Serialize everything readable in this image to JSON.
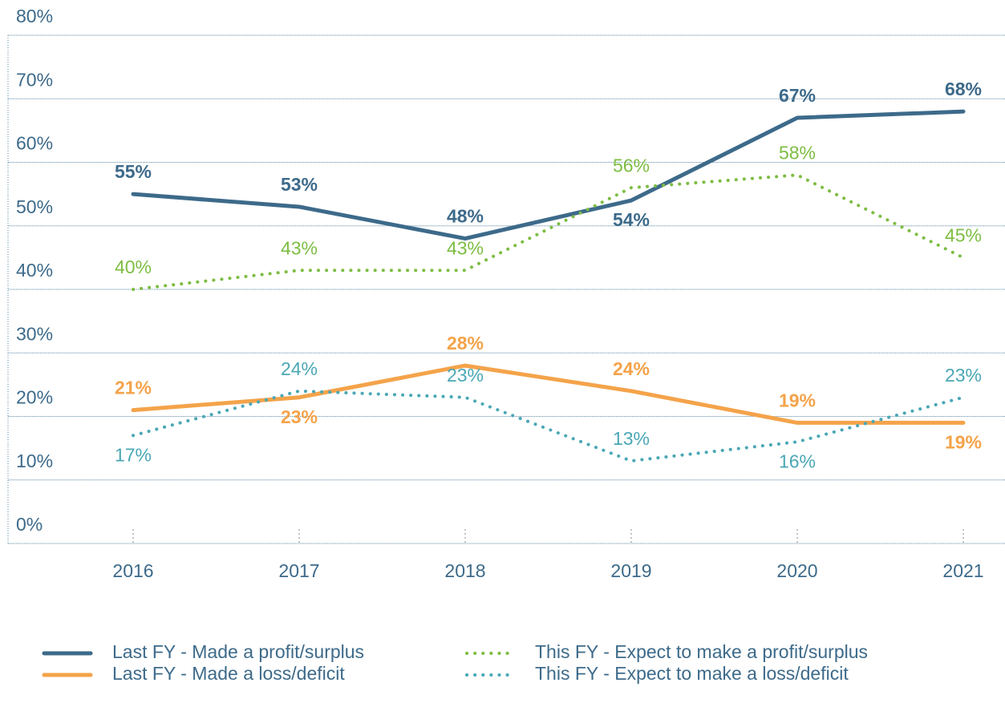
{
  "chart_data": {
    "type": "line",
    "categories": [
      "2016",
      "2017",
      "2018",
      "2019",
      "2020",
      "2021"
    ],
    "series": [
      {
        "name": "Last FY - Made a profit/surplus",
        "color": "#3d6a8a",
        "dashed": false,
        "values": [
          55,
          53,
          48,
          54,
          67,
          68
        ],
        "value_labels": [
          "55%",
          "53%",
          "48%",
          "54%",
          "67%",
          "68%"
        ]
      },
      {
        "name": "Last FY - Made a loss/deficit",
        "color": "#f4a34a",
        "dashed": false,
        "values": [
          21,
          23,
          28,
          24,
          19,
          19
        ],
        "value_labels": [
          "21%",
          "23%",
          "28%",
          "24%",
          "19%",
          "19%"
        ]
      },
      {
        "name": "This FY - Expect to make a profit/surplus",
        "color": "#7dbd42",
        "dashed": true,
        "values": [
          40,
          43,
          43,
          56,
          58,
          45
        ],
        "value_labels": [
          "40%",
          "43%",
          "43%",
          "56%",
          "58%",
          "45%"
        ]
      },
      {
        "name": "This FY - Expect to make a loss/deficit",
        "color": "#4aa7b5",
        "dashed": true,
        "values": [
          17,
          24,
          23,
          13,
          16,
          23
        ],
        "value_labels": [
          "17%",
          "24%",
          "23%",
          "13%",
          "16%",
          "23%"
        ]
      }
    ],
    "ylim": [
      0,
      80
    ],
    "yticks": [
      {
        "value": 0,
        "label": "0%"
      },
      {
        "value": 10,
        "label": "10%"
      },
      {
        "value": 20,
        "label": "20%"
      },
      {
        "value": 30,
        "label": "30%"
      },
      {
        "value": 40,
        "label": "40%"
      },
      {
        "value": 50,
        "label": "50%"
      },
      {
        "value": 60,
        "label": "60%"
      },
      {
        "value": 70,
        "label": "70%"
      },
      {
        "value": 80,
        "label": "80%"
      }
    ],
    "grid": true
  }
}
